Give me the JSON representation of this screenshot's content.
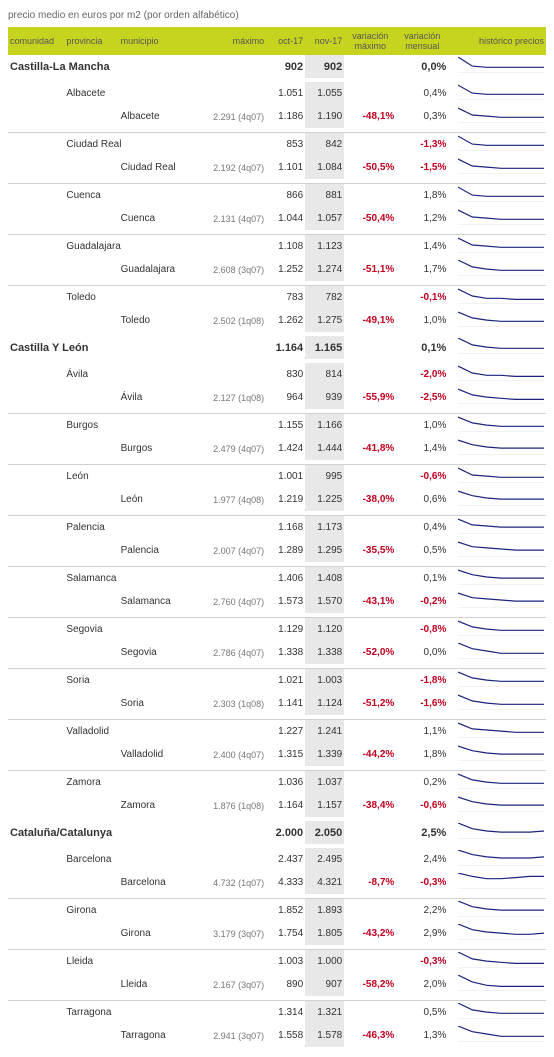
{
  "title": "precio medio en euros por m2 (por orden alfabético)",
  "headers": {
    "comunidad": "comunidad",
    "provincia": "provincia",
    "municipio": "municipio",
    "maximo": "máximo",
    "oct": "oct-17",
    "nov": "nov-17",
    "vmax": "variación máximo",
    "vmen": "variación mensual",
    "hist": "histórico precios"
  },
  "colors": {
    "header_bg": "#c6d420",
    "nov_bg": "#e8e8e8",
    "red": "#c00020",
    "spark_line": "#1a237e"
  },
  "rows": [
    {
      "t": "com",
      "com": "Castilla-La Mancha",
      "oct": "902",
      "nov": "902",
      "vmen": "0,0%",
      "spark": [
        14,
        6,
        5,
        5,
        5,
        5,
        5
      ]
    },
    {
      "t": "sep"
    },
    {
      "t": "prov",
      "prov": "Albacete",
      "oct": "1.051",
      "nov": "1.055",
      "vmen": "0,4%",
      "spark": [
        13,
        6,
        5,
        5,
        5,
        5,
        5
      ]
    },
    {
      "t": "mun",
      "mun": "Albacete",
      "max": "2.291 (4q07)",
      "oct": "1.186",
      "nov": "1.190",
      "vmax": "-48,1%",
      "vmen": "0,3%",
      "spark": [
        13,
        7,
        6,
        5,
        5,
        5,
        5
      ]
    },
    {
      "t": "sep"
    },
    {
      "t": "line"
    },
    {
      "t": "prov",
      "prov": "Ciudad Real",
      "oct": "853",
      "nov": "842",
      "vmen": "-1,3%",
      "vmen_red": true,
      "spark": [
        13,
        6,
        5,
        5,
        5,
        5,
        5
      ]
    },
    {
      "t": "mun",
      "mun": "Ciudad Real",
      "max": "2.192 (4q07)",
      "oct": "1.101",
      "nov": "1.084",
      "vmax": "-50,5%",
      "vmen": "-1,5%",
      "vmen_red": true,
      "spark": [
        13,
        7,
        6,
        5,
        5,
        5,
        5
      ]
    },
    {
      "t": "sep"
    },
    {
      "t": "line"
    },
    {
      "t": "prov",
      "prov": "Cuenca",
      "oct": "866",
      "nov": "881",
      "vmen": "1,8%",
      "spark": [
        13,
        6,
        5,
        5,
        5,
        5,
        5
      ]
    },
    {
      "t": "mun",
      "mun": "Cuenca",
      "max": "2.131 (4q07)",
      "oct": "1.044",
      "nov": "1.057",
      "vmax": "-50,4%",
      "vmen": "1,2%",
      "spark": [
        13,
        7,
        6,
        5,
        5,
        5,
        5
      ]
    },
    {
      "t": "sep"
    },
    {
      "t": "line"
    },
    {
      "t": "prov",
      "prov": "Guadalajara",
      "oct": "1.108",
      "nov": "1.123",
      "vmen": "1,4%",
      "spark": [
        13,
        7,
        6,
        5,
        5,
        5,
        5
      ]
    },
    {
      "t": "mun",
      "mun": "Guadalajara",
      "max": "2.608 (3q07)",
      "oct": "1.252",
      "nov": "1.274",
      "vmax": "-51,1%",
      "vmen": "1,7%",
      "spark": [
        14,
        8,
        6,
        5,
        5,
        5,
        5
      ]
    },
    {
      "t": "sep"
    },
    {
      "t": "line"
    },
    {
      "t": "prov",
      "prov": "Toledo",
      "oct": "783",
      "nov": "782",
      "vmen": "-0,1%",
      "vmen_red": true,
      "spark": [
        13,
        7,
        5,
        5,
        4,
        4,
        4
      ]
    },
    {
      "t": "mun",
      "mun": "Toledo",
      "max": "2.502 (1q08)",
      "oct": "1.262",
      "nov": "1.275",
      "vmax": "-49,1%",
      "vmen": "1,0%",
      "spark": [
        13,
        8,
        6,
        5,
        5,
        5,
        5
      ]
    },
    {
      "t": "sep"
    },
    {
      "t": "com",
      "com": "Castilla Y León",
      "oct": "1.164",
      "nov": "1.165",
      "vmen": "0,1%",
      "spark": [
        14,
        8,
        6,
        5,
        5,
        5,
        5
      ]
    },
    {
      "t": "sep"
    },
    {
      "t": "prov",
      "prov": "Ávila",
      "oct": "830",
      "nov": "814",
      "vmen": "-2,0%",
      "vmen_red": true,
      "spark": [
        13,
        7,
        5,
        5,
        4,
        4,
        4
      ]
    },
    {
      "t": "mun",
      "mun": "Ávila",
      "max": "2.127 (1q08)",
      "oct": "964",
      "nov": "939",
      "vmax": "-55,9%",
      "vmen": "-2,5%",
      "vmen_red": true,
      "spark": [
        13,
        8,
        6,
        5,
        4,
        4,
        4
      ]
    },
    {
      "t": "sep"
    },
    {
      "t": "line"
    },
    {
      "t": "prov",
      "prov": "Burgos",
      "oct": "1.155",
      "nov": "1.166",
      "vmen": "1,0%",
      "spark": [
        13,
        8,
        6,
        5,
        5,
        5,
        5
      ]
    },
    {
      "t": "mun",
      "mun": "Burgos",
      "max": "2.479 (4q07)",
      "oct": "1.424",
      "nov": "1.444",
      "vmax": "-41,8%",
      "vmen": "1,4%",
      "spark": [
        13,
        9,
        7,
        6,
        6,
        6,
        6
      ]
    },
    {
      "t": "sep"
    },
    {
      "t": "line"
    },
    {
      "t": "prov",
      "prov": "León",
      "oct": "1.001",
      "nov": "995",
      "vmen": "-0,6%",
      "vmen_red": true,
      "spark": [
        13,
        7,
        6,
        5,
        5,
        5,
        5
      ]
    },
    {
      "t": "mun",
      "mun": "León",
      "max": "1.977 (4q08)",
      "oct": "1.219",
      "nov": "1.225",
      "vmax": "-38,0%",
      "vmen": "0,6%",
      "spark": [
        13,
        9,
        7,
        6,
        6,
        6,
        6
      ]
    },
    {
      "t": "sep"
    },
    {
      "t": "line"
    },
    {
      "t": "prov",
      "prov": "Palencia",
      "oct": "1.168",
      "nov": "1.173",
      "vmen": "0,4%",
      "spark": [
        13,
        8,
        7,
        6,
        6,
        6,
        6
      ]
    },
    {
      "t": "mun",
      "mun": "Palencia",
      "max": "2.007 (4q07)",
      "oct": "1.289",
      "nov": "1.295",
      "vmax": "-35,5%",
      "vmen": "0,5%",
      "spark": [
        13,
        9,
        8,
        7,
        6,
        6,
        6
      ]
    },
    {
      "t": "sep"
    },
    {
      "t": "line"
    },
    {
      "t": "prov",
      "prov": "Salamanca",
      "oct": "1.406",
      "nov": "1.408",
      "vmen": "0,1%",
      "spark": [
        13,
        9,
        7,
        6,
        6,
        6,
        6
      ]
    },
    {
      "t": "mun",
      "mun": "Salamanca",
      "max": "2.760 (4q07)",
      "oct": "1.573",
      "nov": "1.570",
      "vmax": "-43,1%",
      "vmen": "-0,2%",
      "vmen_red": true,
      "spark": [
        13,
        9,
        8,
        7,
        6,
        6,
        6
      ]
    },
    {
      "t": "sep"
    },
    {
      "t": "line"
    },
    {
      "t": "prov",
      "prov": "Segovia",
      "oct": "1.129",
      "nov": "1.120",
      "vmen": "-0,8%",
      "vmen_red": true,
      "spark": [
        13,
        8,
        6,
        5,
        5,
        5,
        5
      ]
    },
    {
      "t": "mun",
      "mun": "Segovia",
      "max": "2.786 (4q07)",
      "oct": "1.338",
      "nov": "1.338",
      "vmax": "-52,0%",
      "vmen": "0,0%",
      "spark": [
        14,
        9,
        7,
        5,
        5,
        5,
        5
      ]
    },
    {
      "t": "sep"
    },
    {
      "t": "line"
    },
    {
      "t": "prov",
      "prov": "Soria",
      "oct": "1.021",
      "nov": "1.003",
      "vmen": "-1,8%",
      "vmen_red": true,
      "spark": [
        13,
        8,
        6,
        5,
        5,
        5,
        5
      ]
    },
    {
      "t": "mun",
      "mun": "Soria",
      "max": "2.303 (1q08)",
      "oct": "1.141",
      "nov": "1.124",
      "vmax": "-51,2%",
      "vmen": "-1,6%",
      "vmen_red": true,
      "spark": [
        13,
        8,
        6,
        5,
        5,
        5,
        5
      ]
    },
    {
      "t": "sep"
    },
    {
      "t": "line"
    },
    {
      "t": "prov",
      "prov": "Valladolid",
      "oct": "1.227",
      "nov": "1.241",
      "vmen": "1,1%",
      "spark": [
        13,
        8,
        7,
        6,
        5,
        5,
        5
      ]
    },
    {
      "t": "mun",
      "mun": "Valladolid",
      "max": "2.400 (4q07)",
      "oct": "1.315",
      "nov": "1.339",
      "vmax": "-44,2%",
      "vmen": "1,8%",
      "spark": [
        13,
        9,
        7,
        6,
        6,
        6,
        6
      ]
    },
    {
      "t": "sep"
    },
    {
      "t": "line"
    },
    {
      "t": "prov",
      "prov": "Zamora",
      "oct": "1.036",
      "nov": "1.037",
      "vmen": "0,2%",
      "spark": [
        13,
        8,
        6,
        5,
        5,
        5,
        5
      ]
    },
    {
      "t": "mun",
      "mun": "Zamora",
      "max": "1.876 (1q08)",
      "oct": "1.164",
      "nov": "1.157",
      "vmax": "-38,4%",
      "vmen": "-0,6%",
      "vmen_red": true,
      "spark": [
        13,
        9,
        7,
        6,
        6,
        6,
        6
      ]
    },
    {
      "t": "sep"
    },
    {
      "t": "com",
      "com": "Cataluña/Catalunya",
      "oct": "2.000",
      "nov": "2.050",
      "vmen": "2,5%",
      "spark": [
        14,
        9,
        7,
        6,
        6,
        6,
        7
      ]
    },
    {
      "t": "sep"
    },
    {
      "t": "prov",
      "prov": "Barcelona",
      "oct": "2.437",
      "nov": "2.495",
      "vmen": "2,4%",
      "spark": [
        14,
        10,
        8,
        7,
        7,
        7,
        8
      ]
    },
    {
      "t": "mun",
      "mun": "Barcelona",
      "max": "4.732 (1q07)",
      "oct": "4.333",
      "nov": "4.321",
      "vmax": "-8,7%",
      "vmen": "-0,3%",
      "vmen_red": true,
      "spark": [
        14,
        11,
        9,
        9,
        10,
        11,
        11
      ]
    },
    {
      "t": "sep"
    },
    {
      "t": "line"
    },
    {
      "t": "prov",
      "prov": "Girona",
      "oct": "1.852",
      "nov": "1.893",
      "vmen": "2,2%",
      "spark": [
        14,
        9,
        7,
        6,
        6,
        6,
        6
      ]
    },
    {
      "t": "mun",
      "mun": "Girona",
      "max": "3.179 (3q07)",
      "oct": "1.754",
      "nov": "1.805",
      "vmax": "-43,2%",
      "vmen": "2,9%",
      "spark": [
        14,
        9,
        7,
        6,
        5,
        5,
        6
      ]
    },
    {
      "t": "sep"
    },
    {
      "t": "line"
    },
    {
      "t": "prov",
      "prov": "Lleida",
      "oct": "1.003",
      "nov": "1.000",
      "vmen": "-0,3%",
      "vmen_red": true,
      "spark": [
        14,
        8,
        6,
        5,
        4,
        4,
        4
      ]
    },
    {
      "t": "mun",
      "mun": "Lleida",
      "max": "2.167 (3q07)",
      "oct": "890",
      "nov": "907",
      "vmax": "-58,2%",
      "vmen": "2,0%",
      "spark": [
        14,
        8,
        5,
        4,
        4,
        4,
        4
      ]
    },
    {
      "t": "sep"
    },
    {
      "t": "line"
    },
    {
      "t": "prov",
      "prov": "Tarragona",
      "oct": "1.314",
      "nov": "1.321",
      "vmen": "0,5%",
      "spark": [
        14,
        8,
        6,
        5,
        5,
        5,
        5
      ]
    },
    {
      "t": "mun",
      "mun": "Tarragona",
      "max": "2.941 (3q07)",
      "oct": "1.558",
      "nov": "1.578",
      "vmax": "-46,3%",
      "vmen": "1,3%",
      "spark": [
        14,
        9,
        7,
        5,
        5,
        5,
        5
      ]
    }
  ]
}
